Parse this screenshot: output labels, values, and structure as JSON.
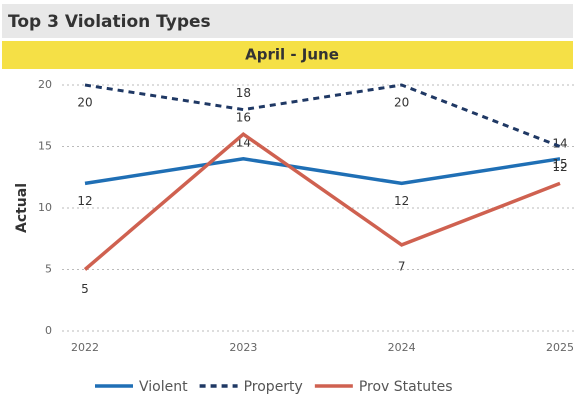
{
  "chart_data": {
    "type": "line",
    "title": "Top 3 Violation Types",
    "subtitle": "April - June",
    "y_label": "Actual",
    "categories": [
      "2022",
      "2023",
      "2024",
      "2025"
    ],
    "series": [
      {
        "name": "Violent",
        "color": "#1f6fb5",
        "dashed": false,
        "values": [
          12,
          14,
          12,
          14
        ]
      },
      {
        "name": "Property",
        "color": "#1f3864",
        "dashed": true,
        "values": [
          20,
          18,
          20,
          15
        ]
      },
      {
        "name": "Prov Statutes",
        "color": "#cf6150",
        "dashed": false,
        "values": [
          5,
          16,
          7,
          12
        ]
      }
    ],
    "ylim": [
      0,
      20
    ],
    "yticks": [
      0,
      5,
      10,
      15,
      20
    ],
    "grid": true,
    "legend": "bottom"
  }
}
